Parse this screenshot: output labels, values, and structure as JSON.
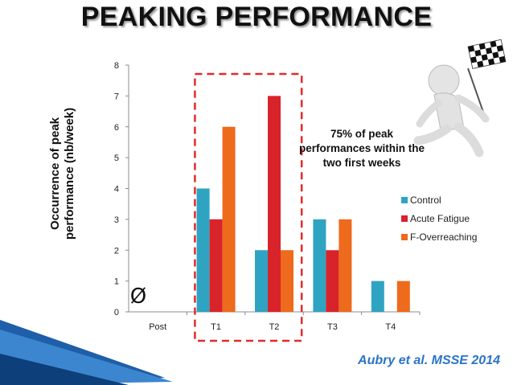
{
  "slide": {
    "title": "PEAKING PERFORMANCE",
    "annotation": "75% of peak performances within the two first weeks",
    "citation": "Aubry et al. MSSE 2014",
    "no_data_symbol": "Ø",
    "figure_icon": "person-running-with-checkered-flag-icon"
  },
  "chart_data": {
    "type": "bar",
    "title": "",
    "xlabel": "",
    "ylabel": "Occurrence of peak performance (nb/week)",
    "categories": [
      "Post",
      "T1",
      "T2",
      "T3",
      "T4"
    ],
    "ylim": [
      0,
      8
    ],
    "yticks": [
      0,
      1,
      2,
      3,
      4,
      5,
      6,
      7,
      8
    ],
    "grid": false,
    "legend": "right",
    "highlight": {
      "categories": [
        "T1",
        "T2"
      ],
      "style": "dashed-red-box"
    },
    "series": [
      {
        "name": "Control",
        "color": "#2fa4c2",
        "values": [
          0,
          4,
          2,
          3,
          1
        ]
      },
      {
        "name": "Acute Fatigue",
        "color": "#d9232a",
        "values": [
          0,
          3,
          7,
          2,
          0
        ]
      },
      {
        "name": "F-Overreaching",
        "color": "#ee6a1c",
        "values": [
          0,
          6,
          2,
          3,
          1
        ]
      }
    ]
  }
}
